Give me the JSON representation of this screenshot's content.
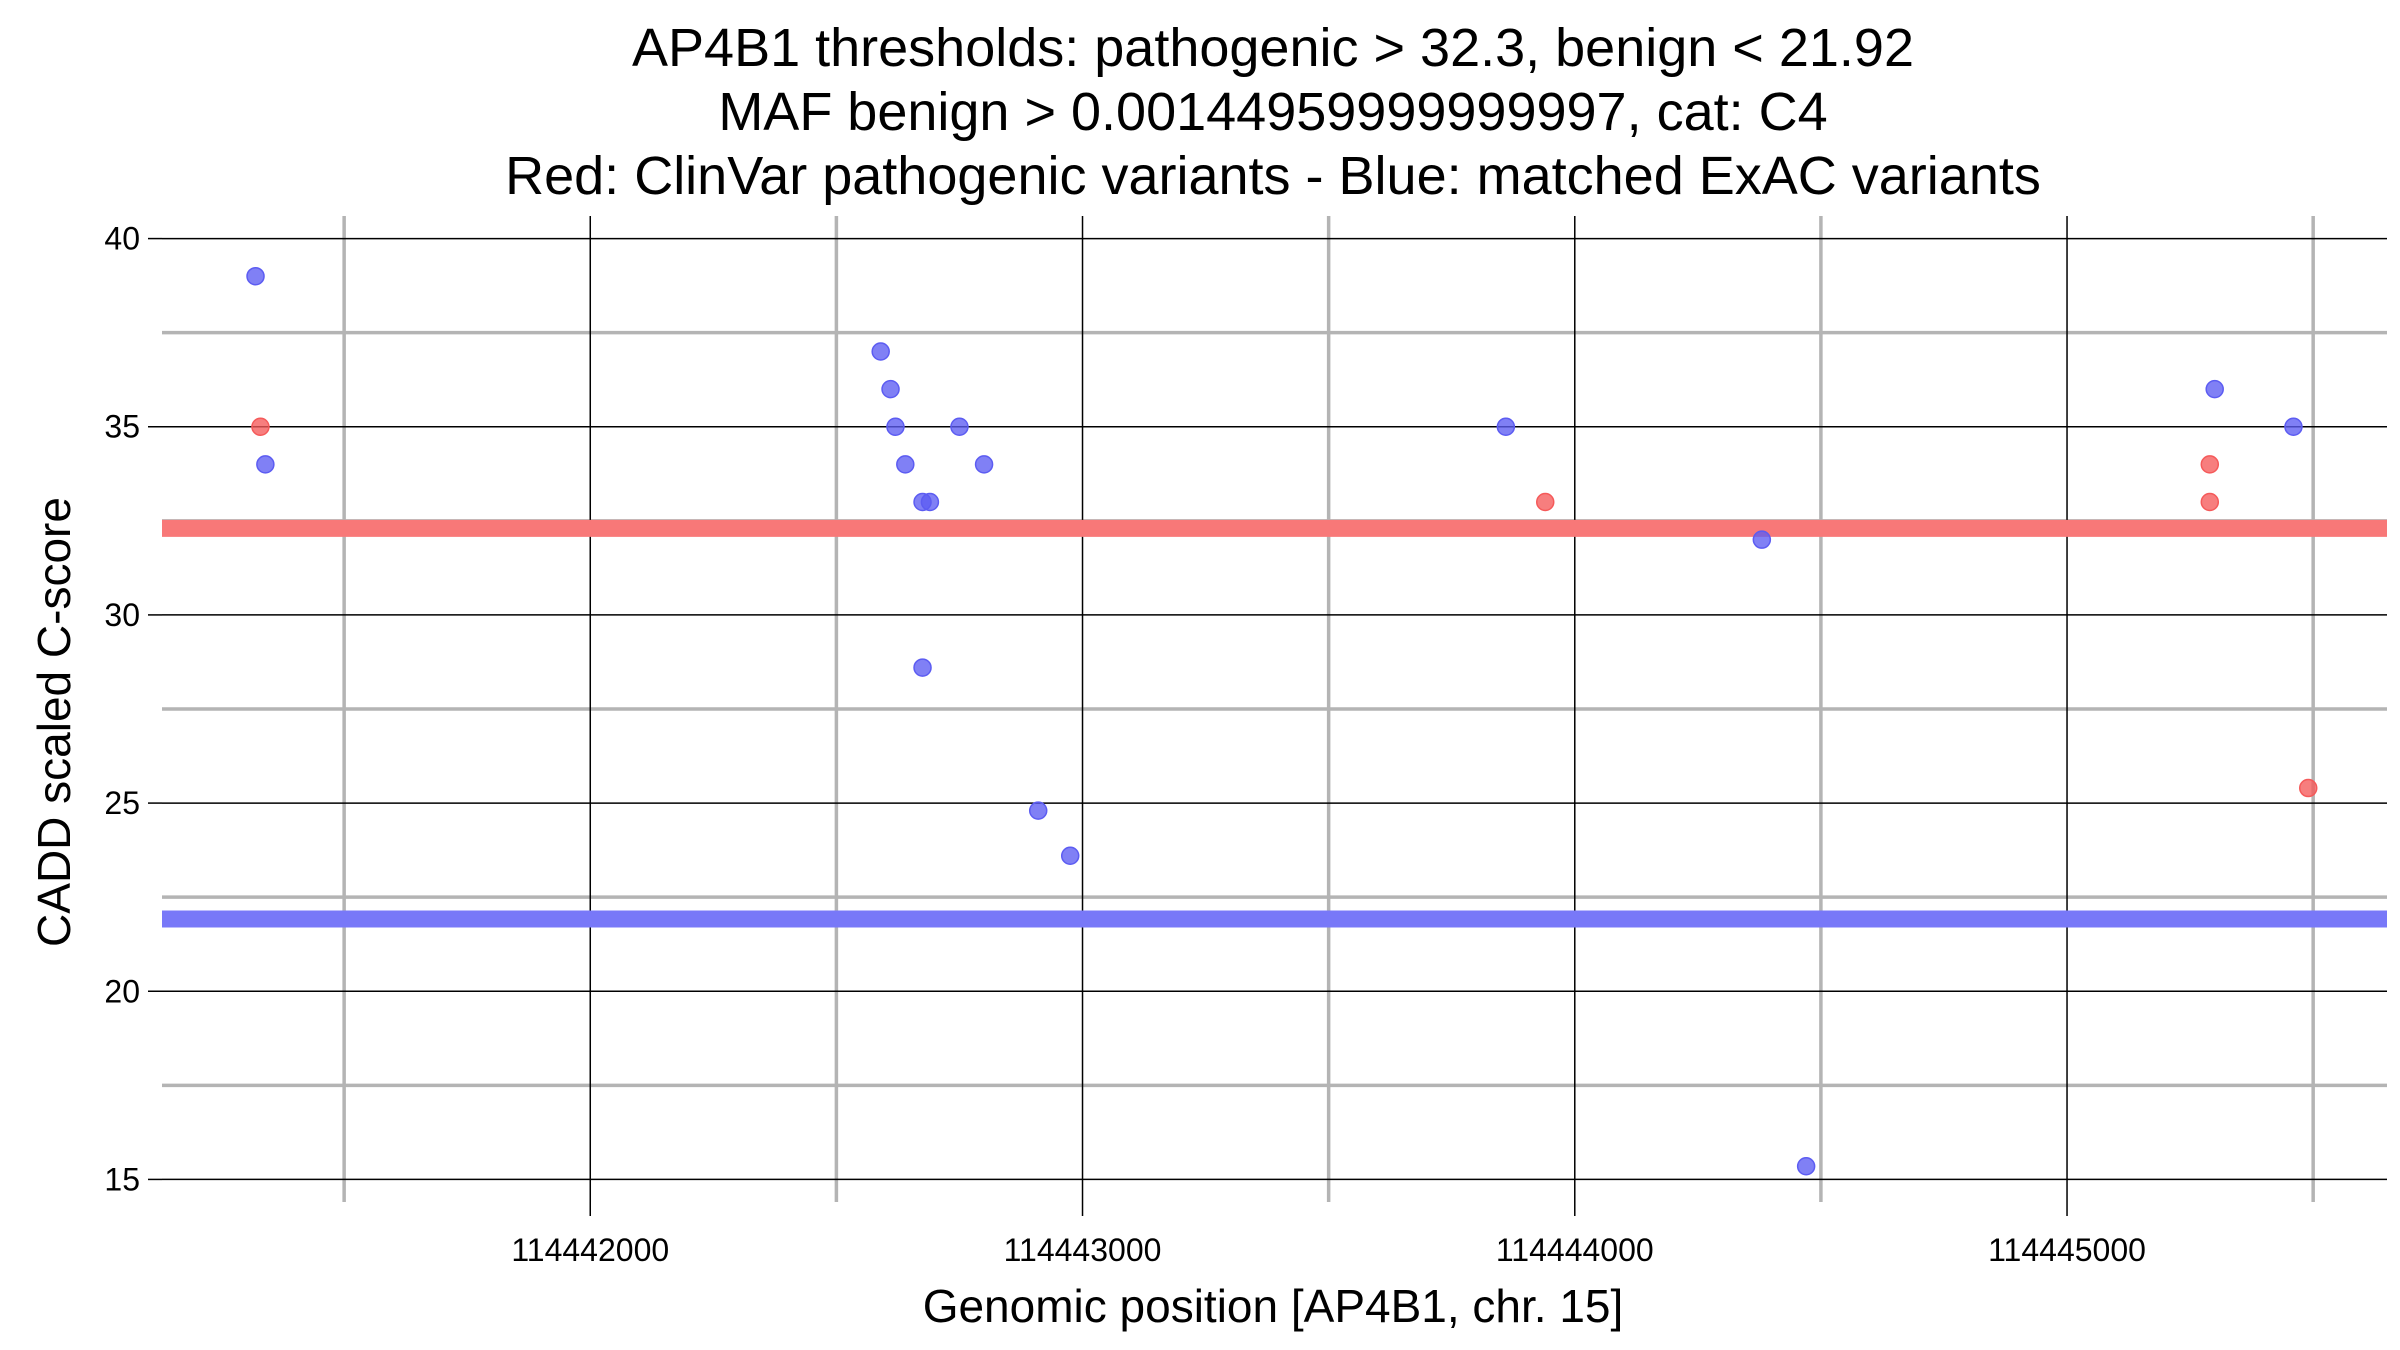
{
  "chart_data": {
    "type": "scatter",
    "title_lines": [
      "AP4B1 thresholds: pathogenic > 32.3, benign < 21.92",
      "MAF benign > 0.00144959999999997, cat: C4",
      "Red: ClinVar pathogenic variants - Blue: matched ExAC variants"
    ],
    "xlabel": "Genomic position [AP4B1, chr. 15]",
    "ylabel": "CADD scaled C-score",
    "xlim": [
      114441130,
      114445650
    ],
    "ylim": [
      14.4,
      40.6
    ],
    "x_major_ticks": [
      114442000,
      114443000,
      114444000,
      114445000
    ],
    "x_minor_ticks": [
      114441500,
      114442500,
      114443500,
      114444500,
      114445500
    ],
    "y_major_ticks": [
      15,
      20,
      25,
      30,
      35,
      40
    ],
    "y_minor_ticks": [
      17.5,
      22.5,
      27.5,
      32.5,
      37.5
    ],
    "thresholds": [
      {
        "name": "pathogenic",
        "value": 32.3,
        "color": "#f87878"
      },
      {
        "name": "benign",
        "value": 21.92,
        "color": "#7878f8"
      }
    ],
    "colors": {
      "pathogenic": "#f55a5a",
      "benign": "#5c5cf2",
      "major_grid": "#000000",
      "minor_grid": "#b4b4b4"
    },
    "series": [
      {
        "group": "pathogenic",
        "points": [
          [
            114441330,
            35
          ],
          [
            114443940,
            33
          ],
          [
            114445290,
            34
          ],
          [
            114445290,
            33
          ],
          [
            114445490,
            25.4
          ]
        ]
      },
      {
        "group": "benign",
        "points": [
          [
            114441320,
            39
          ],
          [
            114441340,
            34
          ],
          [
            114442590,
            37
          ],
          [
            114442610,
            36
          ],
          [
            114442620,
            35
          ],
          [
            114442640,
            34
          ],
          [
            114442675,
            33
          ],
          [
            114442690,
            33
          ],
          [
            114442675,
            28.6
          ],
          [
            114442750,
            35
          ],
          [
            114442800,
            34
          ],
          [
            114442910,
            24.8
          ],
          [
            114442975,
            23.6
          ],
          [
            114443860,
            35
          ],
          [
            114444380,
            32
          ],
          [
            114444470,
            15.35
          ],
          [
            114445300,
            36
          ],
          [
            114445460,
            35
          ]
        ]
      }
    ]
  }
}
